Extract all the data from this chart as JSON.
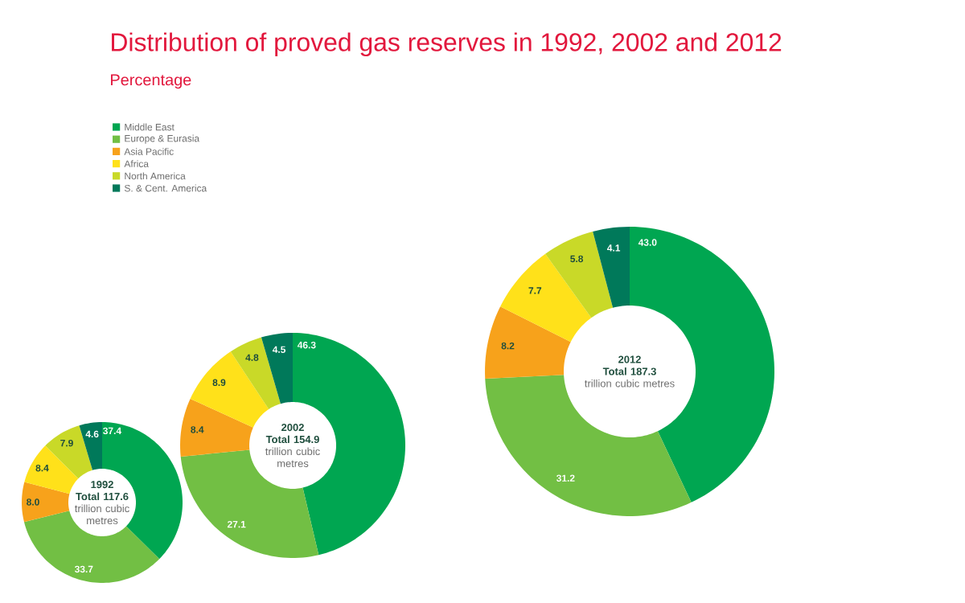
{
  "chart_data": [
    {
      "type": "donut",
      "title": "Distribution of proved gas reserves in 1992, 2002 and 2012",
      "subtitle": "Percentage",
      "legend": "top",
      "value_labels": [
        "37.4",
        "33.7",
        "8.0",
        "8.4",
        "7.9",
        "4.6"
      ],
      "categories": [
        "Middle East",
        "Europe & Eurasia",
        "Asia Pacific",
        "Africa",
        "North America",
        "S. & Cent. America"
      ],
      "values": [
        37.4,
        33.7,
        8.0,
        8.4,
        7.9,
        4.6
      ],
      "colors": [
        "#00a651",
        "#72bf44",
        "#f7a21b",
        "#ffe11a",
        "#c9d928",
        "#00795a"
      ],
      "annotations": [
        "1992",
        "Total 117.6",
        "trillion cubic metres"
      ]
    },
    {
      "type": "donut",
      "value_labels": [
        "46.3",
        "27.1",
        "8.4",
        "8.9",
        "4.8",
        "4.5"
      ],
      "categories": [
        null,
        null,
        null,
        null,
        null,
        null
      ],
      "values": [
        46.3,
        27.1,
        8.4,
        8.9,
        4.8,
        4.5
      ],
      "colors": [
        "#00a651",
        "#72bf44",
        "#f7a21b",
        "#ffe11a",
        "#c9d928",
        "#00795a"
      ],
      "annotations": [
        "2002",
        "Total 154.9",
        "trillion cubic metres"
      ]
    },
    {
      "type": "donut",
      "value_labels": [
        "43.0",
        "31.2",
        "8.2",
        "7.7",
        "5.8",
        "4.1"
      ],
      "categories": [
        null,
        null,
        null,
        null,
        null,
        null
      ],
      "values": [
        43.0,
        31.2,
        8.2,
        7.7,
        5.8,
        4.1
      ],
      "colors": [
        "#00a651",
        "#72bf44",
        "#f7a21b",
        "#ffe11a",
        "#c9d928",
        "#00795a"
      ],
      "annotations": [
        "2012",
        "Total 187.3",
        "trillion cubic metres"
      ]
    }
  ]
}
